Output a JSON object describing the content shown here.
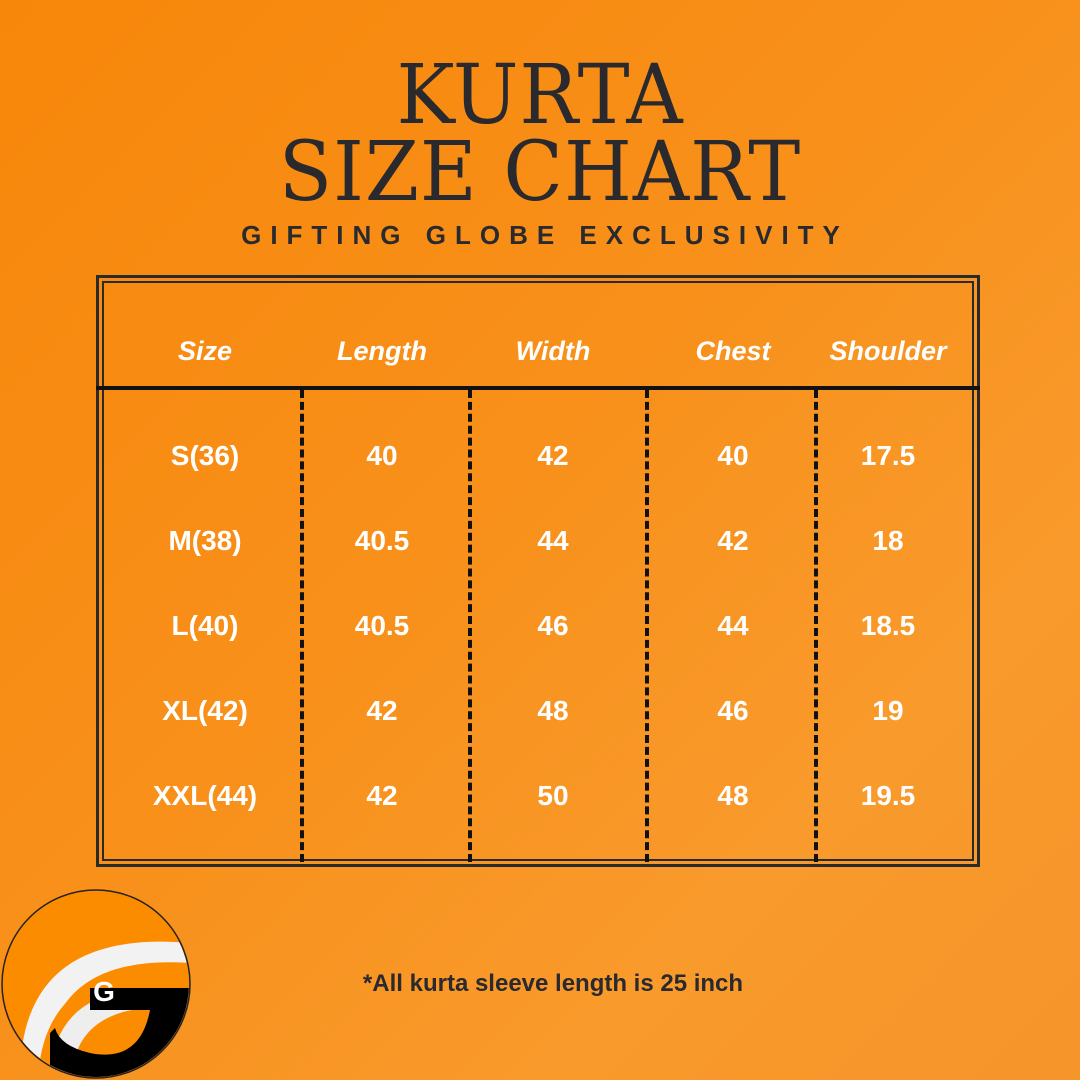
{
  "header": {
    "title_line1": "KURTA",
    "title_line2": "SIZE CHART",
    "subtitle": "GIFTING GLOBE EXCLUSIVITY"
  },
  "table": {
    "columns": [
      "Size",
      "Length",
      "Width",
      "Chest",
      "Shoulder"
    ],
    "rows": [
      [
        "S(36)",
        "40",
        "42",
        "40",
        "17.5"
      ],
      [
        "M(38)",
        "40.5",
        "44",
        "42",
        "18"
      ],
      [
        "L(40)",
        "40.5",
        "46",
        "44",
        "18.5"
      ],
      [
        "XL(42)",
        "42",
        "48",
        "46",
        "19"
      ],
      [
        "XXL(44)",
        "42",
        "50",
        "48",
        "19.5"
      ]
    ]
  },
  "footnote": "*All kurta sleeve length is 25 inch",
  "logo": {
    "letter": "G"
  },
  "colors": {
    "background": "#f8901a",
    "text_dark": "#2a2a2e",
    "cell_text": "#ffffff",
    "logo_black": "#000000"
  }
}
